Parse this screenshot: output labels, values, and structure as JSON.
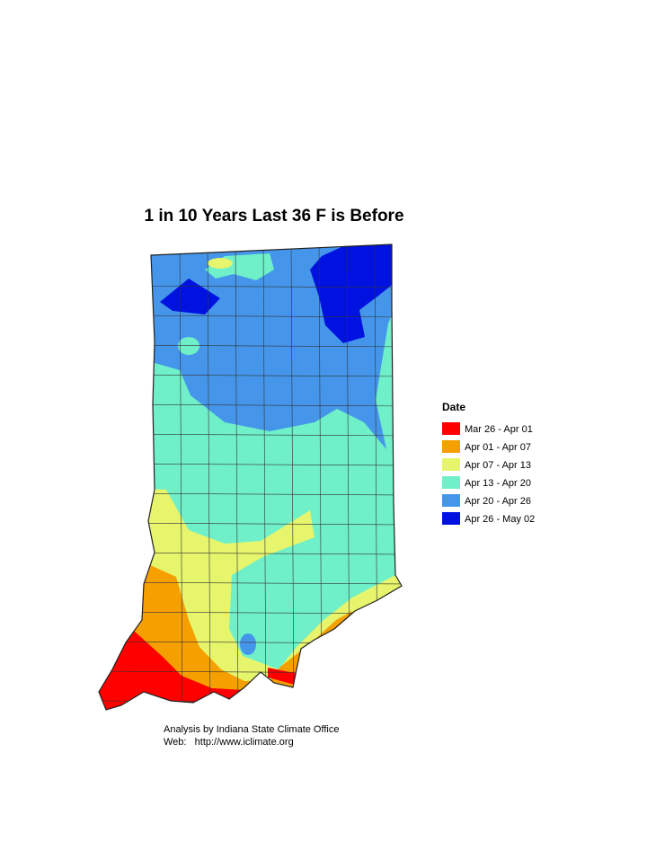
{
  "title": "1 in 10 Years Last 36 F is Before",
  "legend": {
    "title": "Date",
    "items": [
      {
        "label": "Mar 26 - Apr 01",
        "color": "#ff0000"
      },
      {
        "label": "Apr 01 - Apr 07",
        "color": "#f5a000"
      },
      {
        "label": "Apr 07 - Apr 13",
        "color": "#e6f56c"
      },
      {
        "label": "Apr 13 - Apr 20",
        "color": "#6ff0c8"
      },
      {
        "label": "Apr 20 - Apr 26",
        "color": "#4596ea"
      },
      {
        "label": "Apr 26 - May 02",
        "color": "#0012e0"
      }
    ]
  },
  "footer": {
    "line1": "Analysis by Indiana State Climate Office",
    "line2": "Web:   http://www.iclimate.org"
  }
}
